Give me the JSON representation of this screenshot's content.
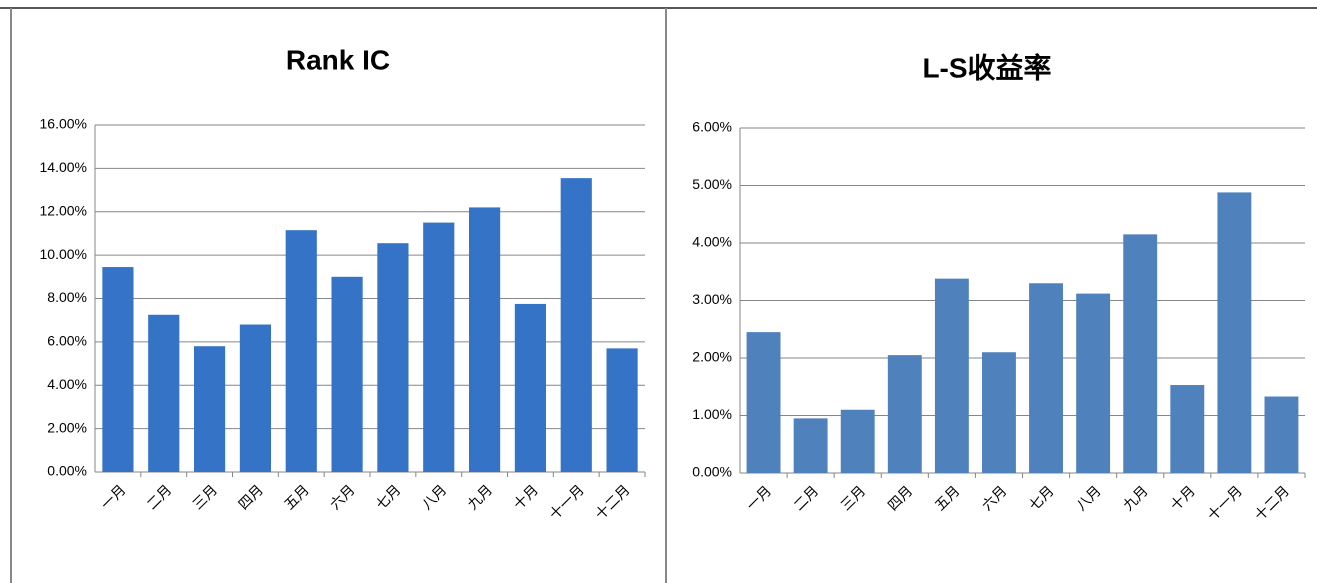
{
  "chart_data": [
    {
      "type": "bar",
      "title": "Rank IC",
      "categories": [
        "一月",
        "二月",
        "三月",
        "四月",
        "五月",
        "六月",
        "七月",
        "八月",
        "九月",
        "十月",
        "十一月",
        "十二月"
      ],
      "values": [
        9.45,
        7.25,
        5.8,
        6.8,
        11.15,
        9.0,
        10.55,
        11.5,
        12.2,
        7.75,
        13.55,
        5.7
      ],
      "color": "#3473c6",
      "ylim": [
        0,
        16
      ],
      "yticks": [
        {
          "value": 0,
          "label": "0.00%"
        },
        {
          "value": 2,
          "label": "2.00%"
        },
        {
          "value": 4,
          "label": "4.00%"
        },
        {
          "value": 6,
          "label": "6.00%"
        },
        {
          "value": 8,
          "label": "8.00%"
        },
        {
          "value": 10,
          "label": "10.00%"
        },
        {
          "value": 12,
          "label": "12.00%"
        },
        {
          "value": 14,
          "label": "14.00%"
        },
        {
          "value": 16,
          "label": "16.00%"
        }
      ],
      "grid": true
    },
    {
      "type": "bar",
      "title": "L-S收益率",
      "categories": [
        "一月",
        "二月",
        "三月",
        "四月",
        "五月",
        "六月",
        "七月",
        "八月",
        "九月",
        "十月",
        "十一月",
        "十二月"
      ],
      "values": [
        2.45,
        0.95,
        1.1,
        2.05,
        3.38,
        2.1,
        3.3,
        3.12,
        4.15,
        1.53,
        4.88,
        1.33
      ],
      "color": "#4f81bd",
      "ylim": [
        0,
        6
      ],
      "yticks": [
        {
          "value": 0,
          "label": "0.00%"
        },
        {
          "value": 1,
          "label": "1.00%"
        },
        {
          "value": 2,
          "label": "2.00%"
        },
        {
          "value": 3,
          "label": "3.00%"
        },
        {
          "value": 4,
          "label": "4.00%"
        },
        {
          "value": 5,
          "label": "5.00%"
        },
        {
          "value": 6,
          "label": "6.00%"
        }
      ],
      "grid": true
    }
  ]
}
